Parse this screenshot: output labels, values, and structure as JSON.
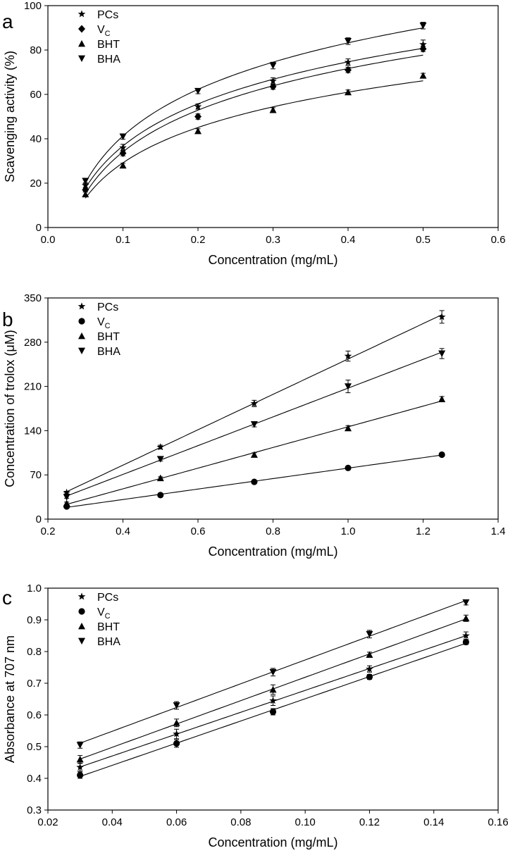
{
  "chart_data": [
    {
      "panel_label": "a",
      "type": "scatter",
      "xlabel": "Concentration (mg/mL)",
      "ylabel": "Scavenging activity (%)",
      "xlim": [
        0.0,
        0.6
      ],
      "ylim": [
        0,
        100
      ],
      "x_ticks": [
        "0.0",
        "0.1",
        "0.2",
        "0.3",
        "0.4",
        "0.5",
        "0.6"
      ],
      "y_ticks": [
        "0",
        "20",
        "40",
        "60",
        "80",
        "100"
      ],
      "x": [
        0.05,
        0.1,
        0.2,
        0.3,
        0.4,
        0.5
      ],
      "fit": "logarithmic",
      "legend_position": "top-left",
      "series": [
        {
          "name": "PCs",
          "marker": "star",
          "values": [
            19,
            36,
            54.5,
            66,
            74.5,
            82.5
          ],
          "errors": [
            1.2,
            1.5,
            1.2,
            1.5,
            1.5,
            2
          ]
        },
        {
          "name": "V",
          "name_sub": "C",
          "marker": "diamond",
          "values": [
            17,
            33.5,
            50,
            63.5,
            71,
            80.5
          ],
          "errors": [
            1,
            1.2,
            1.2,
            1.2,
            1.2,
            1.2
          ]
        },
        {
          "name": "BHT",
          "marker": "triangle-up",
          "values": [
            15,
            28,
            43.5,
            53,
            61,
            68.5
          ],
          "errors": [
            1,
            1,
            1,
            1,
            1,
            1
          ]
        },
        {
          "name": "BHA",
          "marker": "triangle-down",
          "values": [
            21,
            41,
            61.5,
            73,
            84,
            91
          ],
          "errors": [
            1.2,
            1.2,
            1.2,
            1.5,
            1.5,
            1.5
          ]
        }
      ]
    },
    {
      "panel_label": "b",
      "type": "scatter",
      "xlabel": "Concentration (mg/mL)",
      "ylabel": "Concentration of trolox (μM)",
      "xlim": [
        0.2,
        1.4
      ],
      "ylim": [
        0,
        350
      ],
      "x_ticks": [
        "0.2",
        "0.4",
        "0.6",
        "0.8",
        "1.0",
        "1.2",
        "1.4"
      ],
      "y_ticks": [
        "0",
        "70",
        "140",
        "210",
        "280",
        "350"
      ],
      "x": [
        0.25,
        0.5,
        0.75,
        1.0,
        1.25
      ],
      "fit": "linear",
      "legend_position": "top-left",
      "series": [
        {
          "name": "PCs",
          "marker": "star",
          "values": [
            42,
            114,
            183,
            258,
            320
          ],
          "errors": [
            2,
            3,
            5,
            8,
            10
          ]
        },
        {
          "name": "V",
          "name_sub": "C",
          "marker": "circle",
          "values": [
            20,
            38,
            59,
            81,
            102
          ],
          "errors": [
            1.5,
            1.5,
            2,
            2,
            2.5
          ]
        },
        {
          "name": "BHT",
          "marker": "triangle-up",
          "values": [
            25,
            65,
            102,
            144,
            190
          ],
          "errors": [
            2,
            2,
            3,
            4,
            4
          ]
        },
        {
          "name": "BHA",
          "marker": "triangle-down",
          "values": [
            35,
            95,
            150,
            210,
            262
          ],
          "errors": [
            2,
            3,
            4,
            10,
            8
          ]
        }
      ]
    },
    {
      "panel_label": "c",
      "type": "scatter",
      "xlabel": "Concentration (mg/mL)",
      "ylabel": "Absorbance at 707 nm",
      "xlim": [
        0.02,
        0.16
      ],
      "ylim": [
        0.3,
        1.0
      ],
      "x_ticks": [
        "0.02",
        "0.04",
        "0.06",
        "0.08",
        "0.10",
        "0.12",
        "0.14",
        "0.16"
      ],
      "y_ticks": [
        "0.3",
        "0.4",
        "0.5",
        "0.6",
        "0.7",
        "0.8",
        "0.9",
        "1.0"
      ],
      "x": [
        0.03,
        0.06,
        0.09,
        0.12,
        0.15
      ],
      "fit": "linear",
      "legend_position": "top-left",
      "series": [
        {
          "name": "PCs",
          "marker": "star",
          "values": [
            0.435,
            0.54,
            0.645,
            0.745,
            0.85
          ],
          "errors": [
            0.012,
            0.015,
            0.015,
            0.01,
            0.012
          ]
        },
        {
          "name": "V",
          "name_sub": "C",
          "marker": "circle",
          "values": [
            0.41,
            0.51,
            0.61,
            0.72,
            0.83
          ],
          "errors": [
            0.01,
            0.012,
            0.01,
            0.008,
            0.008
          ]
        },
        {
          "name": "BHT",
          "marker": "triangle-up",
          "values": [
            0.46,
            0.575,
            0.68,
            0.79,
            0.905
          ],
          "errors": [
            0.012,
            0.012,
            0.015,
            0.008,
            0.01
          ]
        },
        {
          "name": "BHA",
          "marker": "triangle-down",
          "values": [
            0.505,
            0.63,
            0.735,
            0.855,
            0.955
          ],
          "errors": [
            0.01,
            0.012,
            0.012,
            0.012,
            0.008
          ]
        }
      ]
    }
  ]
}
